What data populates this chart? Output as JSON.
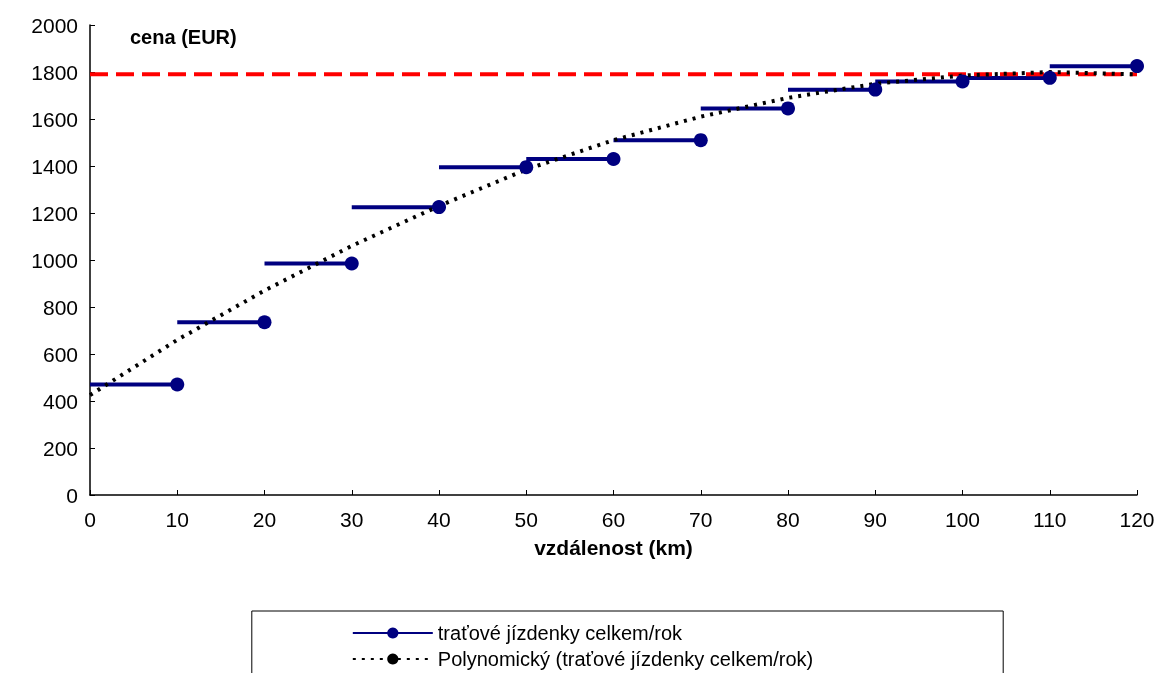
{
  "chart_data": {
    "type": "line",
    "xlabel": "vzdálenost (km)",
    "ylabel": "cena (EUR)",
    "xlim": [
      0,
      120
    ],
    "xticks": [
      0,
      10,
      20,
      30,
      40,
      50,
      60,
      70,
      80,
      90,
      100,
      110,
      120
    ],
    "ylim": [
      0,
      2000
    ],
    "yticks": [
      0,
      200,
      400,
      600,
      800,
      1000,
      1200,
      1400,
      1600,
      1800,
      2000
    ],
    "grid": false,
    "legend": "bottom",
    "series": [
      {
        "name": "traťové jízdenky celkem/rok",
        "color": "#000080",
        "marker": "circle",
        "line_style": "solid",
        "x": [
          0,
          10
        ],
        "values": [
          470,
          470
        ]
      },
      {
        "color": "#000080",
        "marker": "circle",
        "line_style": "solid",
        "x": [
          10,
          20
        ],
        "values": [
          735,
          735
        ]
      },
      {
        "color": "#000080",
        "marker": "circle",
        "line_style": "solid",
        "x": [
          20,
          30
        ],
        "values": [
          985,
          985
        ]
      },
      {
        "color": "#000080",
        "marker": "circle",
        "line_style": "solid",
        "x": [
          30,
          40
        ],
        "values": [
          1225,
          1225
        ]
      },
      {
        "color": "#000080",
        "marker": "circle",
        "line_style": "solid",
        "x": [
          40,
          50
        ],
        "values": [
          1395,
          1395
        ]
      },
      {
        "color": "#000080",
        "marker": "circle",
        "line_style": "solid",
        "x": [
          50,
          60
        ],
        "values": [
          1430,
          1430
        ]
      },
      {
        "color": "#000080",
        "marker": "circle",
        "line_style": "solid",
        "x": [
          60,
          70
        ],
        "values": [
          1510,
          1510
        ]
      },
      {
        "color": "#000080",
        "marker": "circle",
        "line_style": "solid",
        "x": [
          70,
          80
        ],
        "values": [
          1645,
          1645
        ]
      },
      {
        "color": "#000080",
        "marker": "circle",
        "line_style": "solid",
        "x": [
          80,
          90
        ],
        "values": [
          1725,
          1725
        ]
      },
      {
        "color": "#000080",
        "marker": "circle",
        "line_style": "solid",
        "x": [
          90,
          100
        ],
        "values": [
          1760,
          1760
        ]
      },
      {
        "color": "#000080",
        "marker": "circle",
        "line_style": "solid",
        "x": [
          100,
          110
        ],
        "values": [
          1775,
          1775
        ]
      },
      {
        "color": "#000080",
        "marker": "circle",
        "line_style": "solid",
        "x": [
          110,
          120
        ],
        "values": [
          1825,
          1825
        ]
      },
      {
        "color": "#ff0000",
        "marker": "none",
        "line_style": "dashed",
        "x": [
          0,
          120
        ],
        "values": [
          1790,
          1790
        ]
      },
      {
        "name": "Polynomický (traťové jízdenky celkem/rok)",
        "color": "#000000",
        "marker": "none",
        "line_style": "dotted",
        "x": [
          0,
          10,
          20,
          30,
          40,
          50,
          60,
          70,
          80,
          90,
          100,
          110,
          120
        ],
        "values": [
          425,
          660,
          870,
          1060,
          1230,
          1385,
          1510,
          1610,
          1690,
          1750,
          1785,
          1800,
          1790
        ]
      }
    ]
  }
}
